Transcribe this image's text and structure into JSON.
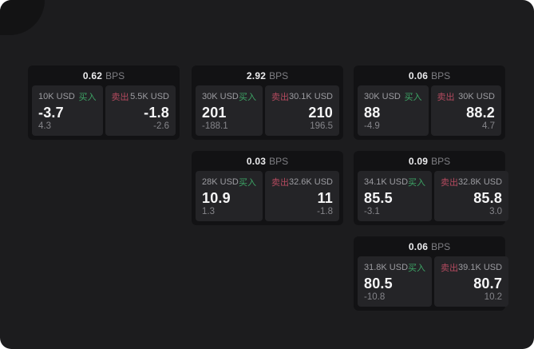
{
  "labels": {
    "bps_unit": "BPS",
    "buy": "买入",
    "sell": "卖出"
  },
  "colors": {
    "background": "#1c1c1e",
    "card_background": "#121214",
    "panel_background": "#242427",
    "buy_green": "#3da465",
    "sell_red": "#b44a5f"
  },
  "cards": [
    {
      "bps": "0.62",
      "buy_amount": "10K USD",
      "buy_value": "-3.7",
      "buy_delta": "4.3",
      "sell_amount": "5.5K USD",
      "sell_value": "-1.8",
      "sell_delta": "-2.6"
    },
    {
      "bps": "2.92",
      "buy_amount": "30K USD",
      "buy_value": "201",
      "buy_delta": "-188.1",
      "sell_amount": "30.1K USD",
      "sell_value": "210",
      "sell_delta": "196.5"
    },
    {
      "bps": "0.06",
      "buy_amount": "30K USD",
      "buy_value": "88",
      "buy_delta": "-4.9",
      "sell_amount": "30K USD",
      "sell_value": "88.2",
      "sell_delta": "4.7"
    },
    {
      "bps": "0.03",
      "buy_amount": "28K USD",
      "buy_value": "10.9",
      "buy_delta": "1.3",
      "sell_amount": "32.6K USD",
      "sell_value": "11",
      "sell_delta": "-1.8"
    },
    {
      "bps": "0.09",
      "buy_amount": "34.1K USD",
      "buy_value": "85.5",
      "buy_delta": "-3.1",
      "sell_amount": "32.8K USD",
      "sell_value": "85.8",
      "sell_delta": "3.0"
    },
    {
      "bps": "0.06",
      "buy_amount": "31.8K USD",
      "buy_value": "80.5",
      "buy_delta": "-10.8",
      "sell_amount": "39.1K USD",
      "sell_value": "80.7",
      "sell_delta": "10.2"
    }
  ]
}
